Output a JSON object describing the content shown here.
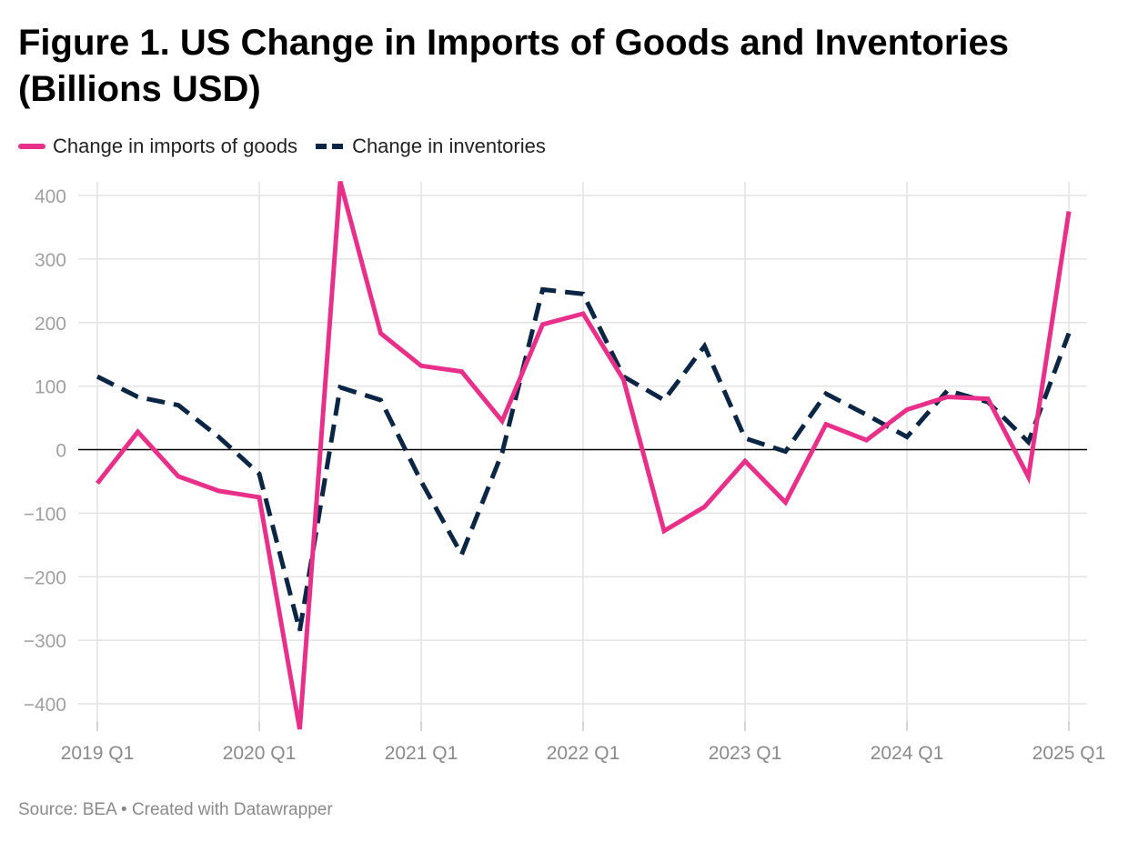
{
  "title": "Figure 1. US Change in Imports of Goods and Inventories (Billions USD)",
  "footer": "Source: BEA • Created with Datawrapper",
  "chart_data": {
    "type": "line",
    "x": [
      "2019 Q1",
      "2019 Q2",
      "2019 Q3",
      "2019 Q4",
      "2020 Q1",
      "2020 Q2",
      "2020 Q3",
      "2020 Q4",
      "2021 Q1",
      "2021 Q2",
      "2021 Q3",
      "2021 Q4",
      "2022 Q1",
      "2022 Q2",
      "2022 Q3",
      "2022 Q4",
      "2023 Q1",
      "2023 Q2",
      "2023 Q3",
      "2023 Q4",
      "2024 Q1",
      "2024 Q2",
      "2024 Q3",
      "2024 Q4",
      "2025 Q1"
    ],
    "x_tick_labels": [
      "2019 Q1",
      "2020 Q1",
      "2021 Q1",
      "2022 Q1",
      "2023 Q1",
      "2024 Q1",
      "2025 Q1"
    ],
    "y_ticks": [
      400,
      300,
      200,
      100,
      0,
      -100,
      -200,
      -300,
      -400
    ],
    "y_tick_labels": [
      "400",
      "300",
      "200",
      "100",
      "0",
      "−100",
      "−200",
      "−300",
      "−400"
    ],
    "ylim": [
      -440,
      420
    ],
    "grid": true,
    "legend_position": "top-left",
    "series": [
      {
        "name": "Change in imports of goods",
        "color": "#e8308a",
        "style": "solid",
        "values": [
          -53,
          28,
          -42,
          -65,
          -75,
          -440,
          422,
          183,
          132,
          123,
          45,
          197,
          214,
          110,
          -128,
          -90,
          -18,
          -83,
          40,
          15,
          63,
          83,
          80,
          -43,
          375
        ]
      },
      {
        "name": "Change in inventories",
        "color": "#0b2545",
        "style": "dashed",
        "values": [
          115,
          83,
          70,
          20,
          -38,
          -285,
          98,
          78,
          -50,
          -165,
          -5,
          252,
          245,
          115,
          78,
          163,
          18,
          -3,
          88,
          55,
          20,
          93,
          75,
          12,
          183
        ]
      }
    ]
  }
}
